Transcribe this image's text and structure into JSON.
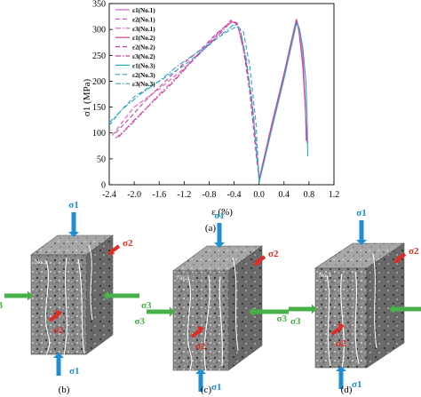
{
  "chart_data": {
    "type": "line",
    "xlabel": "ε (%)",
    "ylabel": "σ1 (MPa)",
    "xlim": [
      -2.4,
      1.2
    ],
    "ylim": [
      0,
      350
    ],
    "xticks": [
      "-2.4",
      "-2.0",
      "-1.6",
      "-1.2",
      "-0.8",
      "-0.4",
      "0.0",
      "0.4",
      "0.8",
      "1.2"
    ],
    "yticks": [
      "0",
      "50",
      "100",
      "150",
      "200",
      "250",
      "300",
      "350"
    ],
    "grid": false,
    "legend_position": "top-left",
    "series": [
      {
        "name": "ε1(No.1)",
        "color": "#e15ac3",
        "dash": "solid",
        "x": [
          0.0,
          0.2,
          0.4,
          0.55,
          0.6,
          0.65,
          0.7,
          0.74,
          0.75,
          0.75
        ],
        "y": [
          8,
          110,
          210,
          290,
          318,
          300,
          250,
          160,
          110,
          85
        ]
      },
      {
        "name": "ε2(No.1)",
        "color": "#e15ac3",
        "dash": "dash",
        "x": [
          -2.35,
          -2.2,
          -2.0,
          -1.6,
          -1.2,
          -0.9,
          -0.7,
          -0.55,
          -0.45,
          -0.35,
          -0.25,
          -0.15,
          -0.05,
          0.0
        ],
        "y": [
          95,
          120,
          150,
          185,
          225,
          260,
          285,
          305,
          318,
          312,
          260,
          180,
          60,
          10
        ]
      },
      {
        "name": "ε3(No.1)",
        "color": "#e15ac3",
        "dash": "dashdot",
        "x": [
          -2.3,
          -2.1,
          -1.9,
          -1.6,
          -1.3,
          -1.0,
          -0.8,
          -0.6,
          -0.45,
          -0.35,
          -0.22,
          -0.1,
          0.0
        ],
        "y": [
          90,
          110,
          135,
          175,
          210,
          250,
          275,
          300,
          316,
          310,
          250,
          150,
          15
        ]
      },
      {
        "name": "ε1(No.2)",
        "color": "#cc3f97",
        "dash": "solid",
        "x": [
          0.0,
          0.2,
          0.4,
          0.55,
          0.6,
          0.64,
          0.7,
          0.74,
          0.76,
          0.77
        ],
        "y": [
          10,
          115,
          215,
          295,
          320,
          295,
          230,
          150,
          100,
          80
        ]
      },
      {
        "name": "ε2(No.2)",
        "color": "#cc3f97",
        "dash": "dash",
        "x": [
          -2.3,
          -2.1,
          -1.8,
          -1.5,
          -1.2,
          -0.9,
          -0.7,
          -0.5,
          -0.4,
          -0.3,
          -0.2,
          -0.1,
          0.0
        ],
        "y": [
          100,
          125,
          165,
          200,
          235,
          265,
          290,
          310,
          315,
          300,
          230,
          130,
          12
        ]
      },
      {
        "name": "ε3(No.2)",
        "color": "#cc3f97",
        "dash": "dashdot",
        "x": [
          -2.25,
          -2.0,
          -1.7,
          -1.4,
          -1.1,
          -0.85,
          -0.6,
          -0.45,
          -0.35,
          -0.25,
          -0.12,
          0.0
        ],
        "y": [
          92,
          125,
          160,
          195,
          235,
          265,
          295,
          315,
          312,
          265,
          170,
          14
        ]
      },
      {
        "name": "ε1(No.3)",
        "color": "#2aa6c9",
        "dash": "solid",
        "x": [
          0.0,
          0.2,
          0.4,
          0.55,
          0.6,
          0.65,
          0.7,
          0.75,
          0.77,
          0.78
        ],
        "y": [
          4,
          105,
          205,
          285,
          312,
          300,
          265,
          200,
          130,
          55
        ]
      },
      {
        "name": "ε2(No.3)",
        "color": "#2aa6c9",
        "dash": "dash",
        "x": [
          -2.4,
          -2.2,
          -2.0,
          -1.6,
          -1.2,
          -0.9,
          -0.65,
          -0.45,
          -0.35,
          -0.25,
          -0.15,
          -0.05,
          0.0
        ],
        "y": [
          115,
          145,
          170,
          200,
          230,
          260,
          285,
          300,
          306,
          295,
          230,
          120,
          6
        ]
      },
      {
        "name": "ε3(No.3)",
        "color": "#2aa6c9",
        "dash": "dashdot",
        "x": [
          -2.4,
          -2.15,
          -1.9,
          -1.6,
          -1.3,
          -1.0,
          -0.7,
          -0.5,
          -0.4,
          -0.3,
          -0.2,
          -0.1,
          0.0
        ],
        "y": [
          120,
          150,
          175,
          200,
          230,
          255,
          280,
          300,
          310,
          300,
          240,
          140,
          8
        ]
      }
    ]
  },
  "figure": {
    "panel_a_label": "(a)",
    "panel_b_label": "(b)",
    "panel_c_label": "(c)",
    "panel_d_label": "(d)",
    "sample_labels": [
      "No.1",
      "No.2",
      "No.3"
    ],
    "stress_labels": {
      "s1": "σ1",
      "s2": "σ2",
      "s3": "σ3"
    },
    "colors": {
      "sigma1": "#1f8fd0",
      "sigma2": "#e22b22",
      "sigma3": "#48b048",
      "rock_face": "#8d8d8d",
      "rock_side": "#6e6e6e",
      "rock_top": "#b0b0b0"
    }
  }
}
